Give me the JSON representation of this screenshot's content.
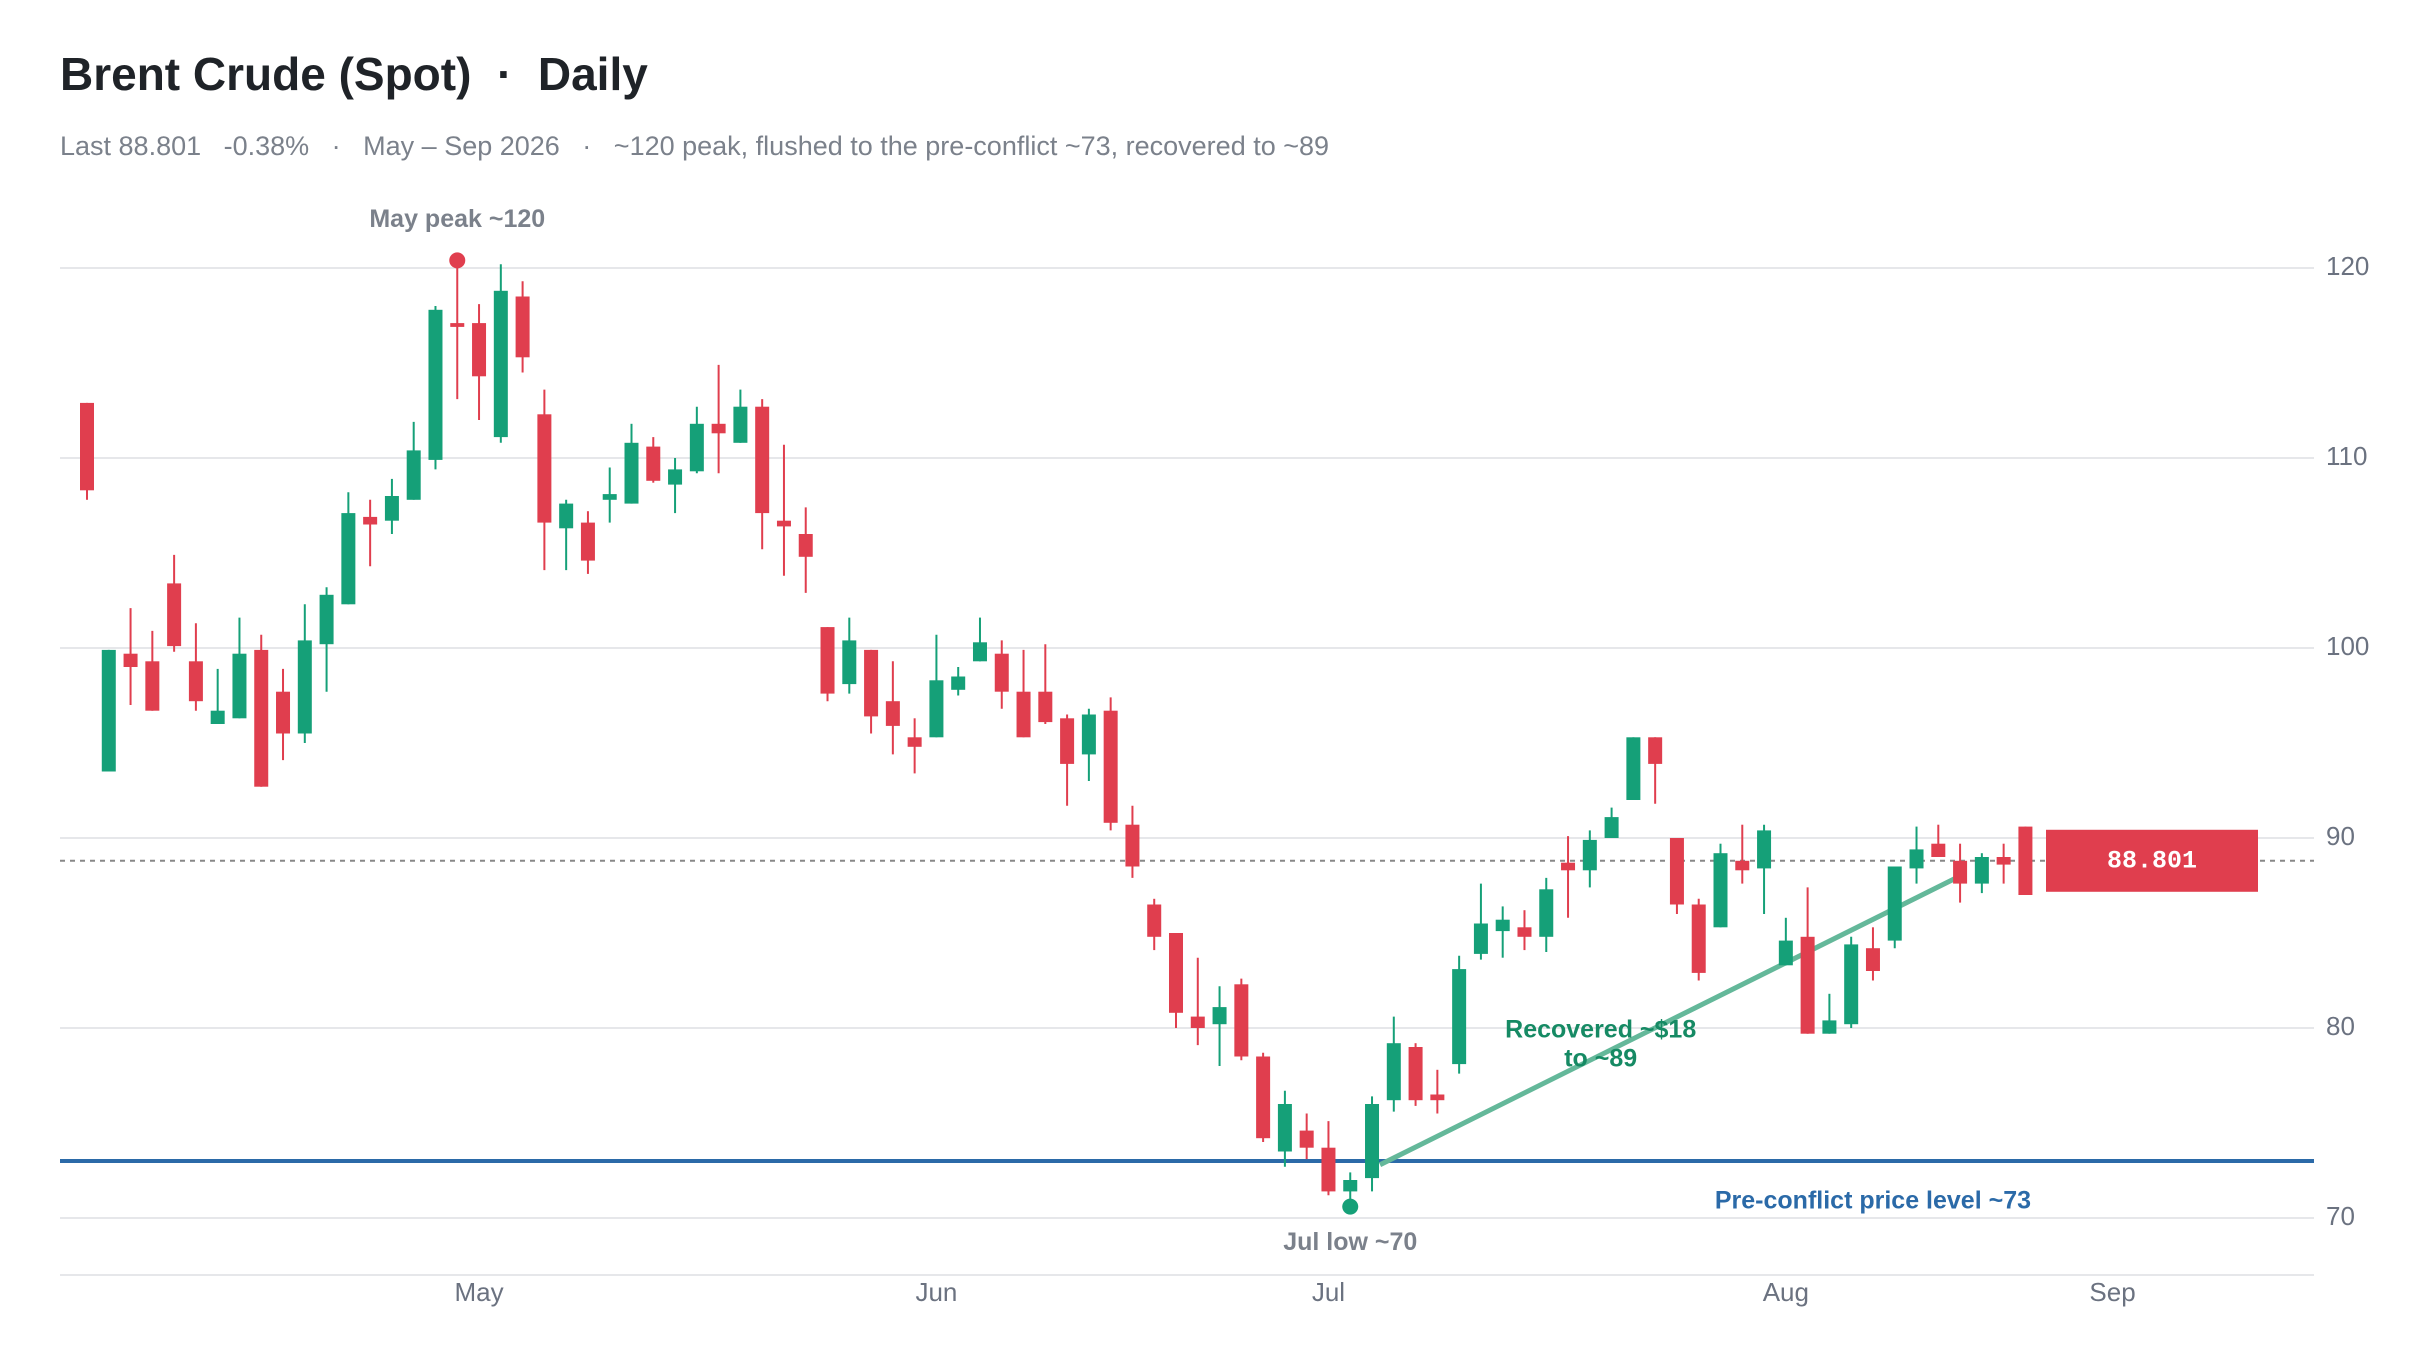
{
  "chart_data": {
    "type": "candlestick",
    "title": "Brent Crude (Spot)  ·  Daily",
    "subtitle": "Last 88.801   -0.38%   ·   May – Sep 2026   ·   ~120 peak, flushed to the pre-conflict ~73, recovered to ~89",
    "categories": [
      null,
      null,
      null,
      null,
      null,
      null,
      null,
      null,
      null,
      null,
      null,
      null,
      null,
      null,
      null,
      null,
      null,
      null,
      "May",
      null,
      null,
      null,
      null,
      null,
      null,
      null,
      null,
      null,
      null,
      null,
      null,
      null,
      null,
      null,
      null,
      null,
      null,
      null,
      null,
      "Jun",
      null,
      null,
      null,
      null,
      null,
      null,
      null,
      null,
      null,
      null,
      null,
      null,
      null,
      null,
      null,
      null,
      null,
      "Jul",
      null,
      null,
      null,
      null,
      null,
      null,
      null,
      null,
      null,
      null,
      null,
      null,
      null,
      null,
      null,
      null,
      null,
      null,
      null,
      null,
      "Aug",
      null,
      null,
      null,
      null,
      null,
      null,
      null,
      null,
      null,
      null,
      null,
      null,
      null,
      null,
      "Sep"
    ],
    "open": [
      112.9,
      93.5,
      99.7,
      99.3,
      103.4,
      99.3,
      96.0,
      96.3,
      99.9,
      97.7,
      95.5,
      100.2,
      102.3,
      106.9,
      106.7,
      107.8,
      109.9,
      117.1,
      117.1,
      111.1,
      118.5,
      112.3,
      106.3,
      106.6,
      107.8,
      107.6,
      110.6,
      108.6,
      109.3,
      111.8,
      110.8,
      112.7,
      106.7,
      106.0,
      101.1,
      98.1,
      99.9,
      97.2,
      95.3,
      95.3,
      97.8,
      99.3,
      99.7,
      97.7,
      97.7,
      96.3,
      94.4,
      96.7,
      90.7,
      86.5,
      85.0,
      80.6,
      80.2,
      82.3,
      78.5,
      73.5,
      74.6,
      73.7,
      71.4,
      72.1,
      76.2,
      79.0,
      76.5,
      78.1,
      83.9,
      85.1,
      85.3,
      84.8,
      88.7,
      88.3,
      90.0,
      92.0,
      95.3,
      90.0,
      86.5,
      85.3,
      88.8,
      88.4,
      83.3,
      84.8,
      79.7,
      80.2,
      84.2,
      84.6,
      88.4,
      89.7,
      88.8,
      87.6,
      89.0,
      90.6,
      null,
      null,
      null,
      null
    ],
    "high": [
      112.9,
      99.9,
      102.1,
      100.9,
      104.9,
      101.3,
      98.9,
      101.6,
      100.7,
      98.9,
      102.3,
      103.2,
      108.2,
      107.8,
      108.9,
      111.9,
      118.0,
      120.4,
      118.1,
      120.2,
      119.3,
      113.6,
      107.8,
      107.2,
      109.5,
      111.8,
      111.1,
      110.0,
      112.7,
      114.9,
      113.6,
      113.1,
      110.7,
      107.4,
      101.1,
      101.6,
      99.9,
      99.3,
      96.3,
      100.7,
      99.0,
      101.6,
      100.4,
      99.9,
      100.2,
      96.5,
      96.8,
      97.4,
      91.7,
      86.8,
      85.0,
      83.7,
      82.2,
      82.6,
      78.7,
      76.7,
      75.5,
      75.1,
      72.4,
      76.4,
      80.6,
      79.2,
      77.8,
      83.8,
      87.6,
      86.4,
      86.2,
      87.9,
      90.1,
      90.4,
      91.6,
      95.3,
      95.3,
      90.0,
      86.8,
      89.7,
      90.7,
      90.7,
      85.8,
      87.4,
      81.8,
      84.8,
      85.3,
      88.5,
      90.6,
      90.7,
      89.7,
      89.2,
      89.7,
      90.6,
      null,
      null,
      null,
      null
    ],
    "low": [
      107.8,
      93.5,
      97.0,
      96.7,
      99.8,
      96.7,
      96.0,
      96.3,
      92.7,
      94.1,
      95.0,
      97.7,
      102.3,
      104.3,
      106.0,
      107.8,
      109.4,
      113.1,
      112.0,
      110.8,
      114.5,
      104.1,
      104.1,
      103.9,
      106.6,
      107.6,
      108.7,
      107.1,
      109.2,
      109.2,
      110.8,
      105.2,
      103.8,
      102.9,
      97.2,
      97.6,
      95.5,
      94.4,
      93.4,
      95.3,
      97.5,
      99.3,
      96.8,
      95.3,
      96.0,
      91.7,
      93.0,
      90.4,
      87.9,
      84.1,
      80.0,
      79.1,
      78.0,
      78.3,
      74.0,
      72.7,
      73.1,
      71.2,
      70.6,
      71.4,
      75.6,
      75.9,
      75.5,
      77.6,
      83.6,
      83.7,
      84.1,
      84.0,
      85.8,
      87.4,
      90.0,
      92.0,
      91.8,
      86.0,
      82.5,
      85.3,
      87.6,
      86.0,
      83.3,
      79.7,
      79.7,
      80.0,
      82.5,
      84.2,
      87.6,
      89.0,
      86.6,
      87.1,
      87.6,
      87.0,
      null,
      null,
      null,
      null
    ],
    "close": [
      108.3,
      99.9,
      99.0,
      96.7,
      100.1,
      97.2,
      96.7,
      99.7,
      92.7,
      95.5,
      100.4,
      102.8,
      107.1,
      106.5,
      108.0,
      110.4,
      117.8,
      116.9,
      114.3,
      118.8,
      115.3,
      106.6,
      107.6,
      104.6,
      108.1,
      110.8,
      108.8,
      109.4,
      111.8,
      111.3,
      112.7,
      107.1,
      106.4,
      104.8,
      97.6,
      100.4,
      96.4,
      95.9,
      94.8,
      98.3,
      98.5,
      100.3,
      97.7,
      95.3,
      96.1,
      93.9,
      96.5,
      90.8,
      88.5,
      84.8,
      80.8,
      80.0,
      81.1,
      78.5,
      74.2,
      76.0,
      73.7,
      71.4,
      72.0,
      76.0,
      79.2,
      76.2,
      76.2,
      83.1,
      85.5,
      85.7,
      84.8,
      87.3,
      88.3,
      89.9,
      91.1,
      95.3,
      93.9,
      86.5,
      82.9,
      89.2,
      88.3,
      90.4,
      84.6,
      79.7,
      80.4,
      84.4,
      83.0,
      88.5,
      89.4,
      89.0,
      87.6,
      89.0,
      88.6,
      87.0,
      null,
      null,
      null,
      null
    ],
    "up_color": "#15a078",
    "down_color": "#e03e4e",
    "ylim": [
      67,
      124
    ],
    "yticks": [
      70,
      80,
      90,
      100,
      110,
      120
    ],
    "grid": true,
    "last_price": 88.801,
    "reference_line": {
      "value": 73,
      "label": "Pre-conflict price level ~73",
      "color": "#2b6aa8"
    },
    "peak_label": "May peak ~120",
    "low_label": "Jul low ~70",
    "recovery_label": [
      "Recovered ~$18",
      "to ~89"
    ],
    "trend_line": {
      "start": 72.8,
      "end": 88,
      "color": "#64b89a"
    }
  }
}
